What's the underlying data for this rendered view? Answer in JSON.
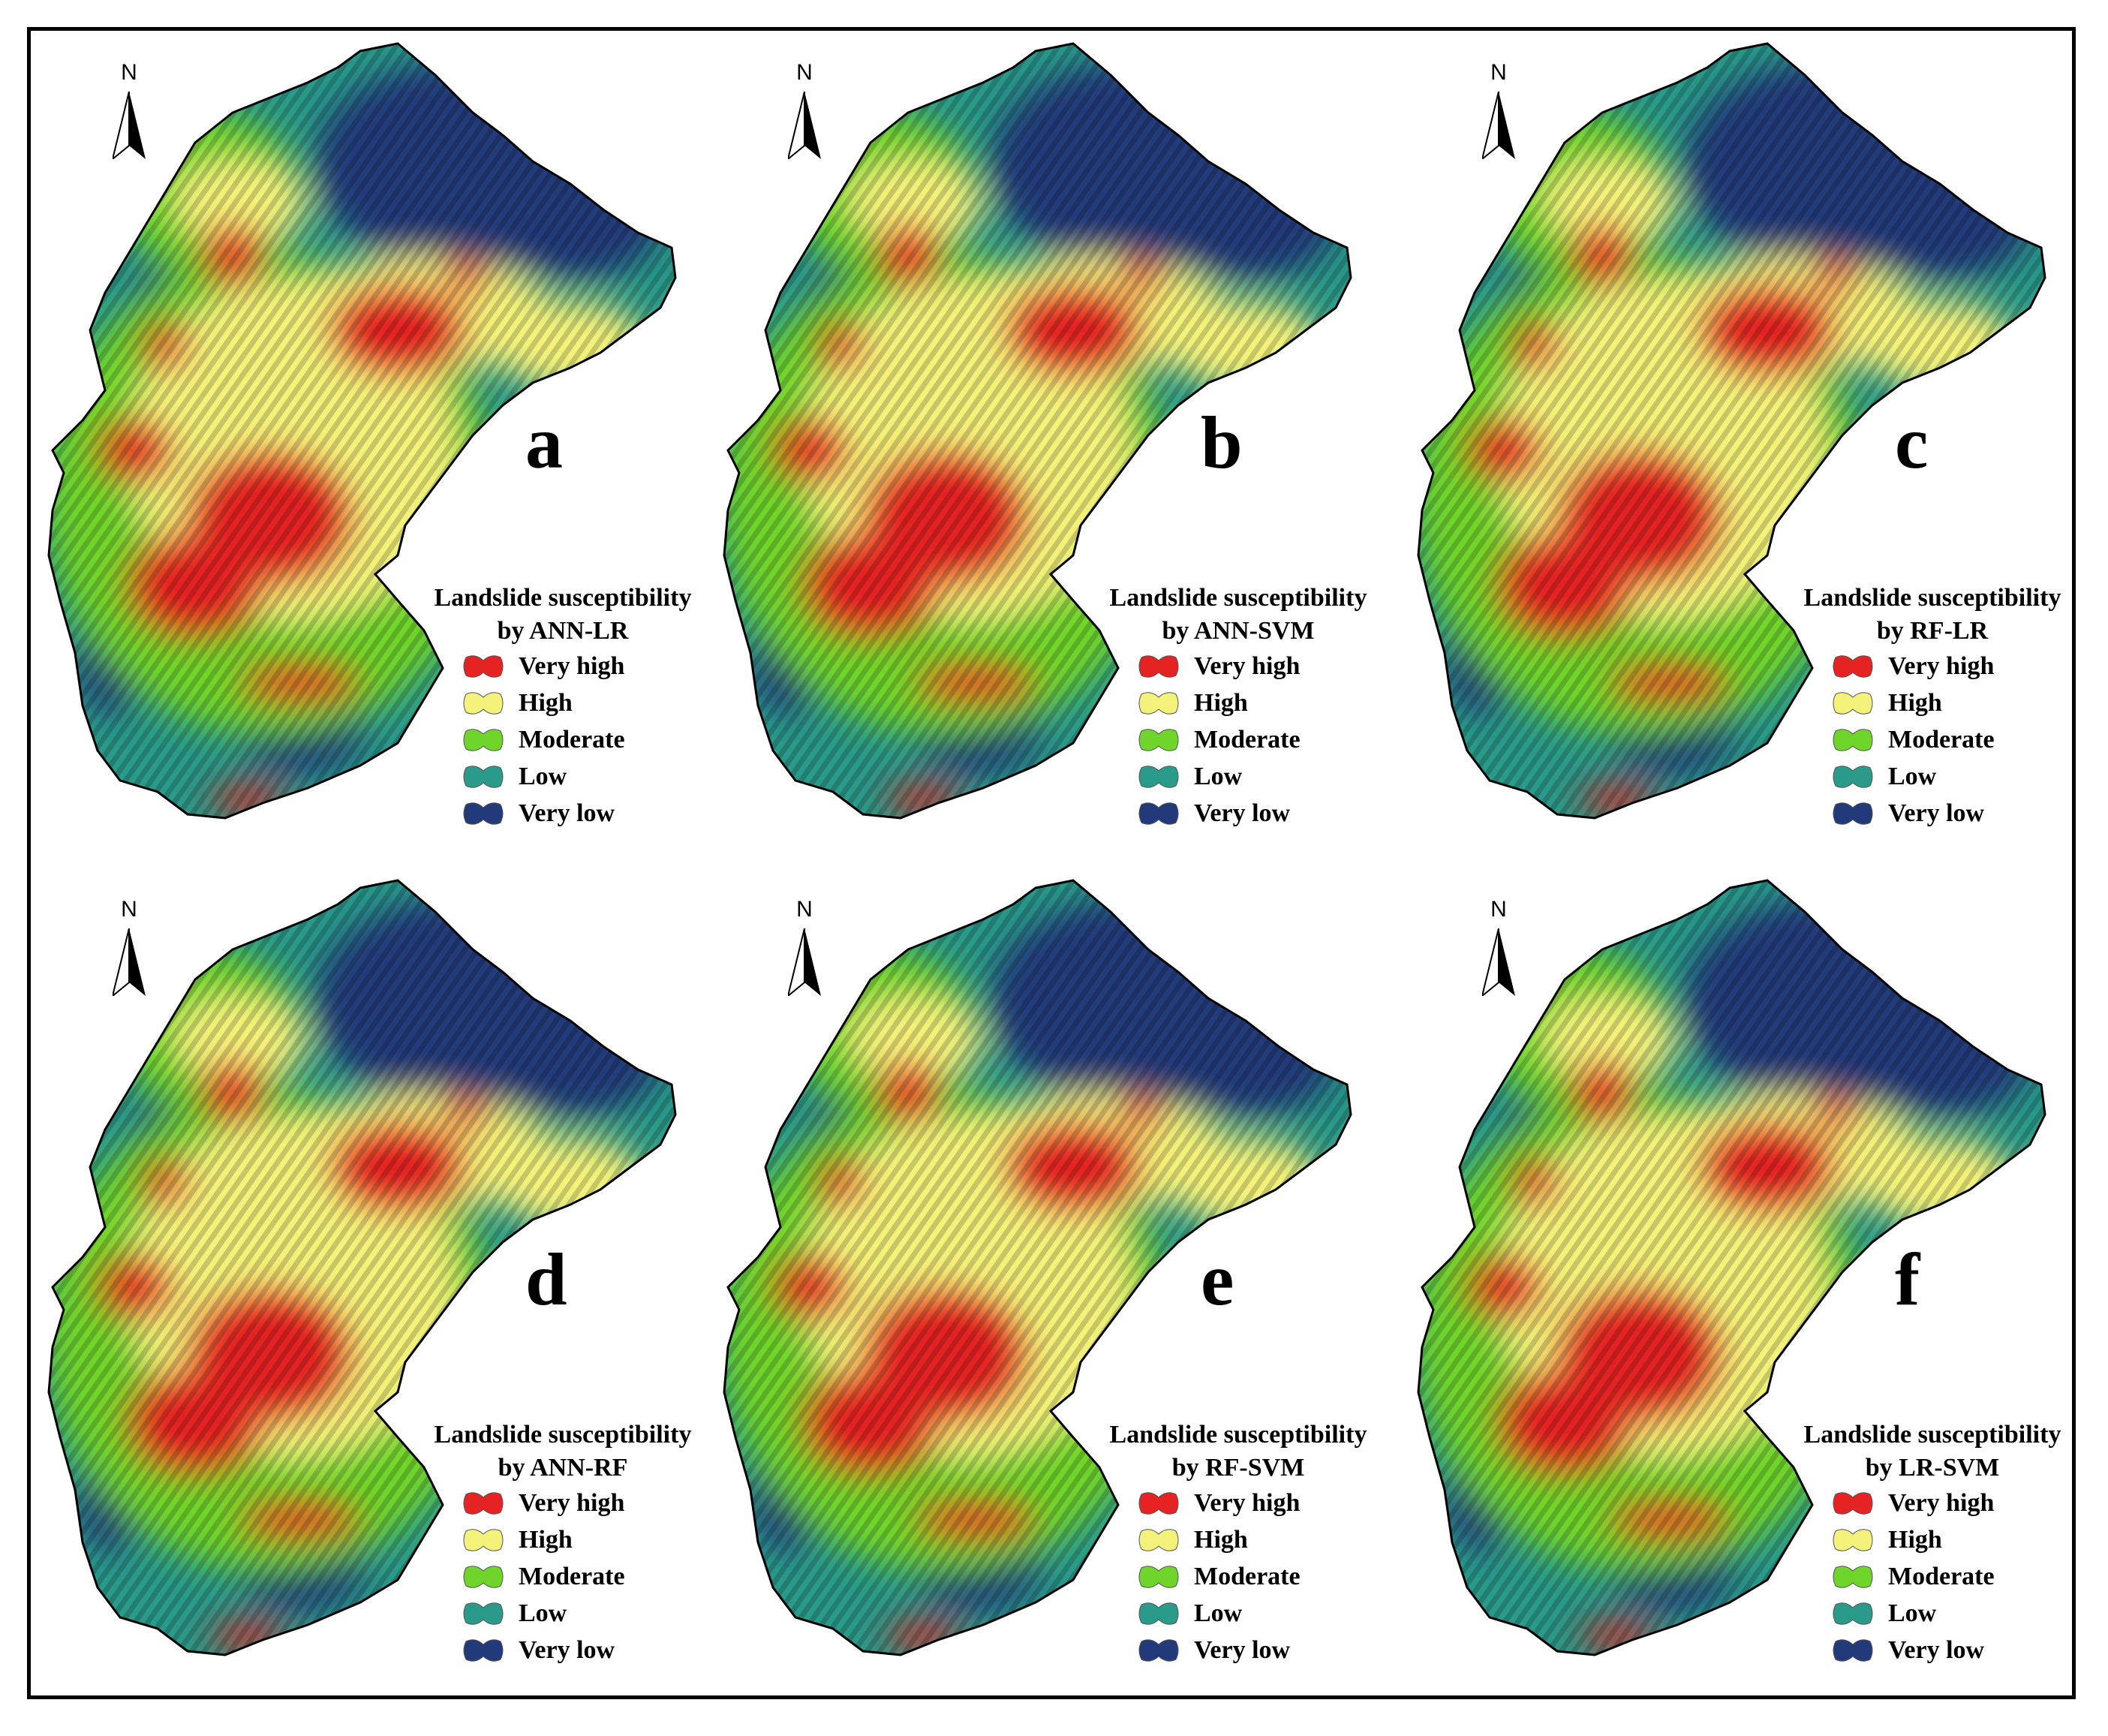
{
  "north_label": "N",
  "legend_classes": [
    {
      "key": "very_high",
      "label": "Very high",
      "color": "#e52323"
    },
    {
      "key": "high",
      "label": "High",
      "color": "#f4f27a"
    },
    {
      "key": "moderate",
      "label": "Moderate",
      "color": "#6fd52a"
    },
    {
      "key": "low",
      "label": "Low",
      "color": "#2a9a8a"
    },
    {
      "key": "very_low",
      "label": "Very low",
      "color": "#233a7a"
    }
  ],
  "panels": [
    {
      "label": "a",
      "legend_title_1": "Landslide susceptibility",
      "legend_title_2": "by ANN-LR"
    },
    {
      "label": "b",
      "legend_title_1": "Landslide susceptibility",
      "legend_title_2": "by ANN-SVM"
    },
    {
      "label": "c",
      "legend_title_1": "Landslide susceptibility",
      "legend_title_2": "by RF-LR"
    },
    {
      "label": "d",
      "legend_title_1": "Landslide susceptibility",
      "legend_title_2": "by ANN-RF"
    },
    {
      "label": "e",
      "legend_title_1": "Landslide susceptibility",
      "legend_title_2": "by RF-SVM"
    },
    {
      "label": "f",
      "legend_title_1": "Landslide susceptibility",
      "legend_title_2": "by LR-SVM"
    }
  ]
}
